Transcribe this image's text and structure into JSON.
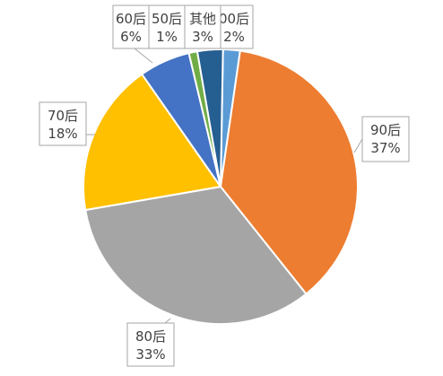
{
  "chart_data": {
    "type": "pie",
    "title": "",
    "legend": "none",
    "slices": [
      {
        "label": "00后",
        "value": 2,
        "value_label": "2%",
        "color": "#5B9BD5"
      },
      {
        "label": "90后",
        "value": 37,
        "value_label": "37%",
        "color": "#ED7D31"
      },
      {
        "label": "80后",
        "value": 33,
        "value_label": "33%",
        "color": "#A5A5A5"
      },
      {
        "label": "70后",
        "value": 18,
        "value_label": "18%",
        "color": "#FFC000"
      },
      {
        "label": "60后",
        "value": 6,
        "value_label": "6%",
        "color": "#4472C4"
      },
      {
        "label": "50后",
        "value": 1,
        "value_label": "1%",
        "color": "#70AD47"
      },
      {
        "label": "其他",
        "value": 3,
        "value_label": "3%",
        "color": "#255E91"
      }
    ]
  }
}
